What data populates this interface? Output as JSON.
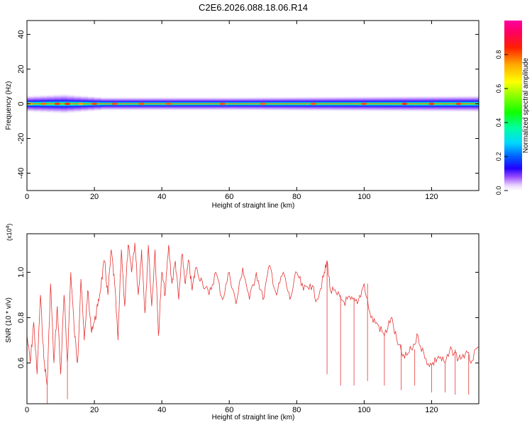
{
  "title": "C2E6.2026.088.18.06.R14",
  "chart_data": [
    {
      "type": "heatmap",
      "title": "C2E6.2026.088.18.06.R14",
      "xlabel": "Height of straight line (km)",
      "ylabel": "Frequency (Hz)",
      "xlim": [
        0,
        134
      ],
      "ylim": [
        -50,
        48
      ],
      "xticks": [
        "0",
        "20",
        "40",
        "60",
        "80",
        "100",
        "120"
      ],
      "yticks": [
        "-40",
        "-20",
        "0",
        "20",
        "40"
      ],
      "band_center_hz": 0,
      "band_halfwidth_hz": [
        {
          "km": 0,
          "hz": 4
        },
        {
          "km": 10,
          "hz": 5
        },
        {
          "km": 22,
          "hz": 3
        },
        {
          "km": 60,
          "hz": 3
        },
        {
          "km": 134,
          "hz": 4
        }
      ]
    },
    {
      "type": "line",
      "xlabel": "Height of straight line (km)",
      "ylabel": "SNR (10 * v/v)",
      "y_multiplier": "(x10",
      "y_exponent": "4",
      "xlim": [
        0,
        134
      ],
      "ylim": [
        0.42,
        1.17
      ],
      "xticks": [
        "0",
        "20",
        "40",
        "60",
        "80",
        "100",
        "120"
      ],
      "yticks": [
        "0.6",
        "0.8",
        "1.0"
      ],
      "series": [
        {
          "name": "SNR",
          "color": "#e53535",
          "x": [
            0,
            1,
            2,
            3,
            4,
            5,
            6,
            7,
            8,
            9,
            10,
            11,
            12,
            13,
            14,
            15,
            16,
            17,
            18,
            19,
            20,
            21,
            22,
            23,
            24,
            25,
            26,
            27,
            28,
            29,
            30,
            31,
            32,
            33,
            34,
            35,
            36,
            37,
            38,
            39,
            40,
            41,
            42,
            43,
            44,
            45,
            46,
            47,
            48,
            49,
            50,
            52,
            54,
            56,
            58,
            60,
            62,
            64,
            66,
            68,
            70,
            72,
            74,
            76,
            78,
            80,
            82,
            84,
            86,
            88,
            89,
            90,
            92,
            94,
            96,
            98,
            100,
            102,
            104,
            106,
            108,
            110,
            112,
            114,
            116,
            118,
            120,
            122,
            124,
            126,
            128,
            130,
            132,
            134
          ],
          "values": [
            0.72,
            0.6,
            0.78,
            0.55,
            0.9,
            0.62,
            0.5,
            0.95,
            0.6,
            0.85,
            0.55,
            0.9,
            0.6,
            1.0,
            0.75,
            0.6,
            0.97,
            0.7,
            0.92,
            0.75,
            0.78,
            0.85,
            0.95,
            1.05,
            0.9,
            1.1,
            0.95,
            0.7,
            1.1,
            0.85,
            1.12,
            1.0,
            1.13,
            0.9,
            1.1,
            0.82,
            1.12,
            0.85,
            1.1,
            0.72,
            1.0,
            0.9,
            1.12,
            0.95,
            1.05,
            0.88,
            1.08,
            0.95,
            1.05,
            0.92,
            1.02,
            0.96,
            0.9,
            1.0,
            0.88,
            1.0,
            0.86,
            1.02,
            0.88,
            1.0,
            0.88,
            1.03,
            0.9,
            1.0,
            0.88,
            1.0,
            0.92,
            0.95,
            0.88,
            0.98,
            1.05,
            0.92,
            0.9,
            0.87,
            0.88,
            0.86,
            0.95,
            0.8,
            0.77,
            0.72,
            0.8,
            0.68,
            0.62,
            0.66,
            0.72,
            0.62,
            0.59,
            0.63,
            0.6,
            0.66,
            0.62,
            0.64,
            0.61,
            0.67
          ]
        }
      ]
    }
  ],
  "colorbar": {
    "label": "Normalized spectral amplitude",
    "ticks": [
      "0.0",
      "0.2",
      "0.4",
      "0.6",
      "0.8"
    ]
  }
}
